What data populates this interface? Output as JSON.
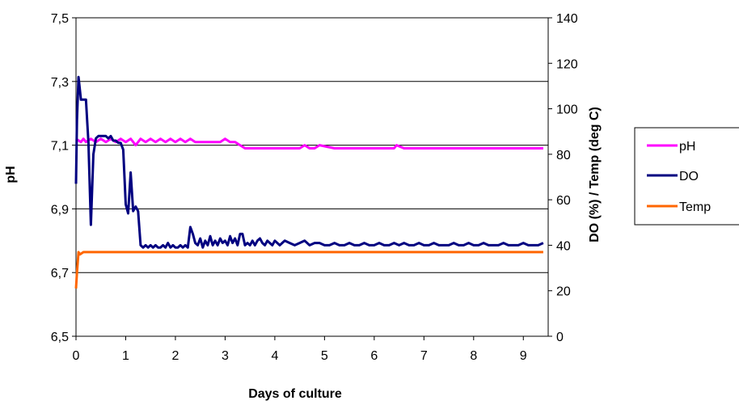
{
  "chart_data": {
    "type": "line",
    "title": "",
    "xlabel": "Days of culture",
    "ylabel": "pH",
    "y2label": "DO (%) / Temp (deg C)",
    "xlim": [
      0,
      9.5
    ],
    "ylim": [
      6.5,
      7.5
    ],
    "y2lim": [
      0,
      140
    ],
    "x_ticks": [
      "0",
      "1",
      "2",
      "3",
      "4",
      "5",
      "6",
      "7",
      "8",
      "9"
    ],
    "y_ticks": [
      "6,5",
      "6,7",
      "6,9",
      "7,1",
      "7,3",
      "7,5"
    ],
    "y2_ticks": [
      "0",
      "20",
      "40",
      "60",
      "80",
      "100",
      "120",
      "140"
    ],
    "grid": true,
    "legend_position": "right",
    "series": [
      {
        "name": "pH",
        "axis": "left",
        "color": "#ff00ff",
        "x": [
          0,
          0.1,
          0.15,
          0.2,
          0.3,
          0.4,
          0.5,
          0.6,
          0.7,
          0.8,
          0.9,
          1.0,
          1.1,
          1.2,
          1.3,
          1.4,
          1.5,
          1.6,
          1.7,
          1.8,
          1.9,
          2.0,
          2.1,
          2.2,
          2.3,
          2.4,
          2.5,
          2.6,
          2.7,
          2.8,
          2.9,
          3.0,
          3.1,
          3.2,
          3.3,
          3.4,
          3.5,
          3.7,
          4.0,
          4.3,
          4.5,
          4.6,
          4.7,
          4.8,
          4.9,
          5.2,
          5.6,
          6.0,
          6.3,
          6.4,
          6.45,
          6.6,
          7.0,
          7.5,
          8.0,
          8.5,
          9.0,
          9.4
        ],
        "y": [
          7.12,
          7.11,
          7.12,
          7.11,
          7.12,
          7.11,
          7.12,
          7.11,
          7.12,
          7.11,
          7.12,
          7.11,
          7.12,
          7.1,
          7.12,
          7.11,
          7.12,
          7.11,
          7.12,
          7.11,
          7.12,
          7.11,
          7.12,
          7.11,
          7.12,
          7.11,
          7.11,
          7.11,
          7.11,
          7.11,
          7.11,
          7.12,
          7.11,
          7.11,
          7.1,
          7.09,
          7.09,
          7.09,
          7.09,
          7.09,
          7.09,
          7.1,
          7.09,
          7.09,
          7.1,
          7.09,
          7.09,
          7.09,
          7.09,
          7.09,
          7.1,
          7.09,
          7.09,
          7.09,
          7.09,
          7.09,
          7.09,
          7.09
        ]
      },
      {
        "name": "DO",
        "axis": "right",
        "color": "#000080",
        "x": [
          0,
          0.02,
          0.05,
          0.1,
          0.2,
          0.25,
          0.3,
          0.35,
          0.4,
          0.45,
          0.5,
          0.55,
          0.6,
          0.65,
          0.7,
          0.75,
          0.8,
          0.85,
          0.9,
          0.95,
          1.0,
          1.05,
          1.1,
          1.15,
          1.2,
          1.25,
          1.3,
          1.35,
          1.4,
          1.45,
          1.5,
          1.55,
          1.6,
          1.65,
          1.7,
          1.75,
          1.8,
          1.85,
          1.9,
          1.95,
          2.0,
          2.05,
          2.1,
          2.15,
          2.2,
          2.25,
          2.3,
          2.35,
          2.4,
          2.45,
          2.5,
          2.55,
          2.6,
          2.65,
          2.7,
          2.75,
          2.8,
          2.85,
          2.9,
          2.95,
          3.0,
          3.05,
          3.1,
          3.15,
          3.2,
          3.25,
          3.3,
          3.35,
          3.4,
          3.45,
          3.5,
          3.55,
          3.6,
          3.65,
          3.7,
          3.75,
          3.8,
          3.85,
          3.9,
          3.95,
          4.0,
          4.1,
          4.2,
          4.3,
          4.4,
          4.5,
          4.6,
          4.7,
          4.8,
          4.9,
          5.0,
          5.1,
          5.2,
          5.3,
          5.4,
          5.5,
          5.6,
          5.7,
          5.8,
          5.9,
          6.0,
          6.1,
          6.2,
          6.3,
          6.4,
          6.5,
          6.6,
          6.7,
          6.8,
          6.9,
          7.0,
          7.1,
          7.2,
          7.3,
          7.4,
          7.5,
          7.6,
          7.7,
          7.8,
          7.9,
          8.0,
          8.1,
          8.2,
          8.3,
          8.4,
          8.5,
          8.6,
          8.7,
          8.8,
          8.9,
          9.0,
          9.1,
          9.2,
          9.3,
          9.4
        ],
        "y": [
          67,
          95,
          114,
          104,
          104,
          85,
          49,
          80,
          87,
          88,
          88,
          88,
          88,
          87,
          88,
          86,
          86,
          85,
          85,
          82,
          58,
          54,
          72,
          55,
          57,
          55,
          40,
          39,
          40,
          39,
          40,
          39,
          40,
          39,
          39,
          40,
          39,
          41,
          39,
          40,
          39,
          39,
          40,
          39,
          40,
          39,
          48,
          45,
          41,
          40,
          43,
          39,
          42,
          40,
          44,
          40,
          42,
          40,
          43,
          41,
          42,
          40,
          44,
          41,
          43,
          40,
          45,
          45,
          40,
          41,
          40,
          42,
          40,
          42,
          43,
          41,
          40,
          42,
          41,
          40,
          42,
          40,
          42,
          41,
          40,
          41,
          42,
          40,
          41,
          41,
          40,
          40,
          41,
          40,
          40,
          41,
          40,
          40,
          41,
          40,
          40,
          41,
          40,
          40,
          41,
          40,
          41,
          40,
          40,
          41,
          40,
          40,
          41,
          40,
          40,
          40,
          41,
          40,
          40,
          41,
          40,
          40,
          41,
          40,
          40,
          40,
          41,
          40,
          40,
          40,
          41,
          40,
          40,
          40,
          41
        ]
      },
      {
        "name": "Temp",
        "axis": "right",
        "color": "#ff6600",
        "x": [
          0,
          0.02,
          0.05,
          0.08,
          0.15,
          1.0,
          2.0,
          3.0,
          4.0,
          5.0,
          6.0,
          7.0,
          8.0,
          9.0,
          9.4
        ],
        "y": [
          21,
          28,
          37,
          36,
          37,
          37,
          37,
          37,
          37,
          37,
          37,
          37,
          37,
          37,
          37
        ]
      }
    ]
  }
}
